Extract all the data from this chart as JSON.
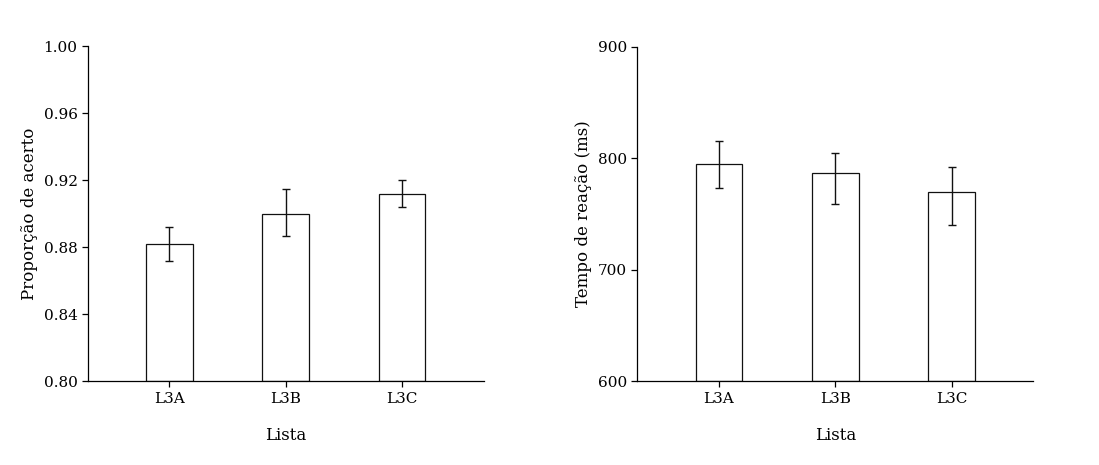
{
  "left": {
    "categories": [
      "L3A",
      "L3B",
      "L3C"
    ],
    "values": [
      0.882,
      0.9,
      0.912
    ],
    "errors_upper": [
      0.01,
      0.015,
      0.008
    ],
    "errors_lower": [
      0.01,
      0.013,
      0.008
    ],
    "ylabel": "Proporção de acerto",
    "xlabel": "Lista",
    "ylim": [
      0.8,
      1.0
    ],
    "yticks": [
      0.8,
      0.84,
      0.88,
      0.92,
      0.96,
      1.0
    ]
  },
  "right": {
    "categories": [
      "L3A",
      "L3B",
      "L3C"
    ],
    "values": [
      795,
      787,
      770
    ],
    "errors_upper": [
      20,
      18,
      22
    ],
    "errors_lower": [
      22,
      28,
      30
    ],
    "ylabel": "Tempo de reação (ms)",
    "xlabel": "Lista",
    "ylim": [
      600,
      900
    ],
    "yticks": [
      600,
      700,
      800,
      900
    ]
  },
  "bar_color": "#ffffff",
  "bar_edgecolor": "#111111",
  "bar_width": 0.4,
  "capsize": 3,
  "error_linewidth": 1.0,
  "background_color": "#ffffff",
  "font_family": "serif",
  "label_fontsize": 12,
  "tick_fontsize": 11
}
